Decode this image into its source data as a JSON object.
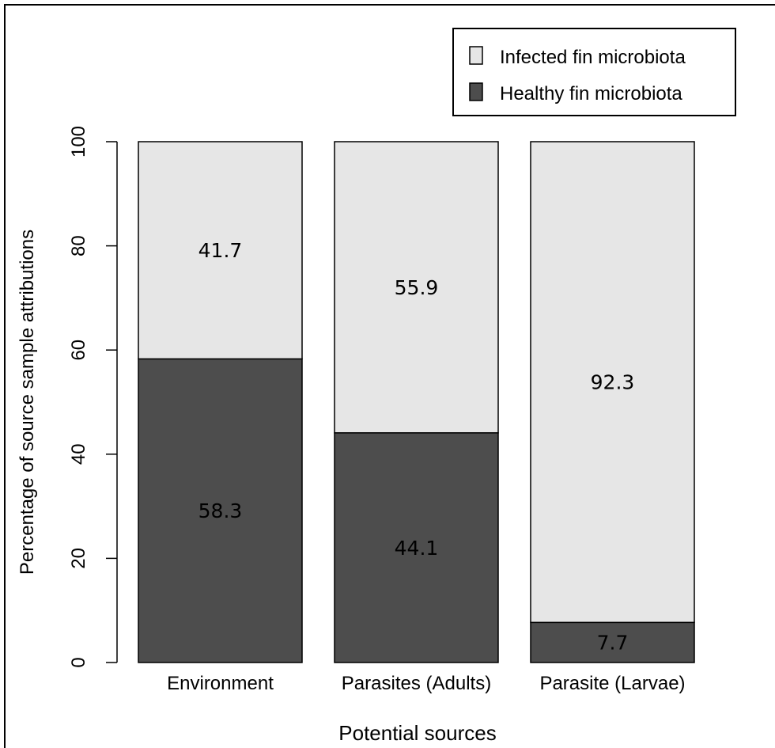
{
  "chart_data": {
    "type": "bar",
    "stacked": true,
    "title": "",
    "xlabel": "Potential sources",
    "ylabel": "Percentage of source sample attributions",
    "categories": [
      "Environment",
      "Parasites (Adults)",
      "Parasite (Larvae)"
    ],
    "series": [
      {
        "name": "Healthy fin microbiota",
        "values": [
          58.3,
          44.1,
          7.7
        ],
        "color": "#4d4d4d",
        "label_color": "#000000"
      },
      {
        "name": "Infected fin microbiota",
        "values": [
          41.7,
          55.9,
          92.3
        ],
        "color": "#e6e6e6",
        "label_color": "#000000"
      }
    ],
    "data_labels": [
      [
        "58.3",
        "44.1",
        "7.7"
      ],
      [
        "41.7",
        "55.9",
        "92.3"
      ]
    ],
    "legend_order": [
      "Infected fin microbiota",
      "Healthy fin microbiota"
    ],
    "legend_position": "top-right",
    "ylim": [
      0,
      100
    ],
    "yticks": [
      "0",
      "20",
      "40",
      "60",
      "80",
      "100"
    ],
    "grid": false
  }
}
